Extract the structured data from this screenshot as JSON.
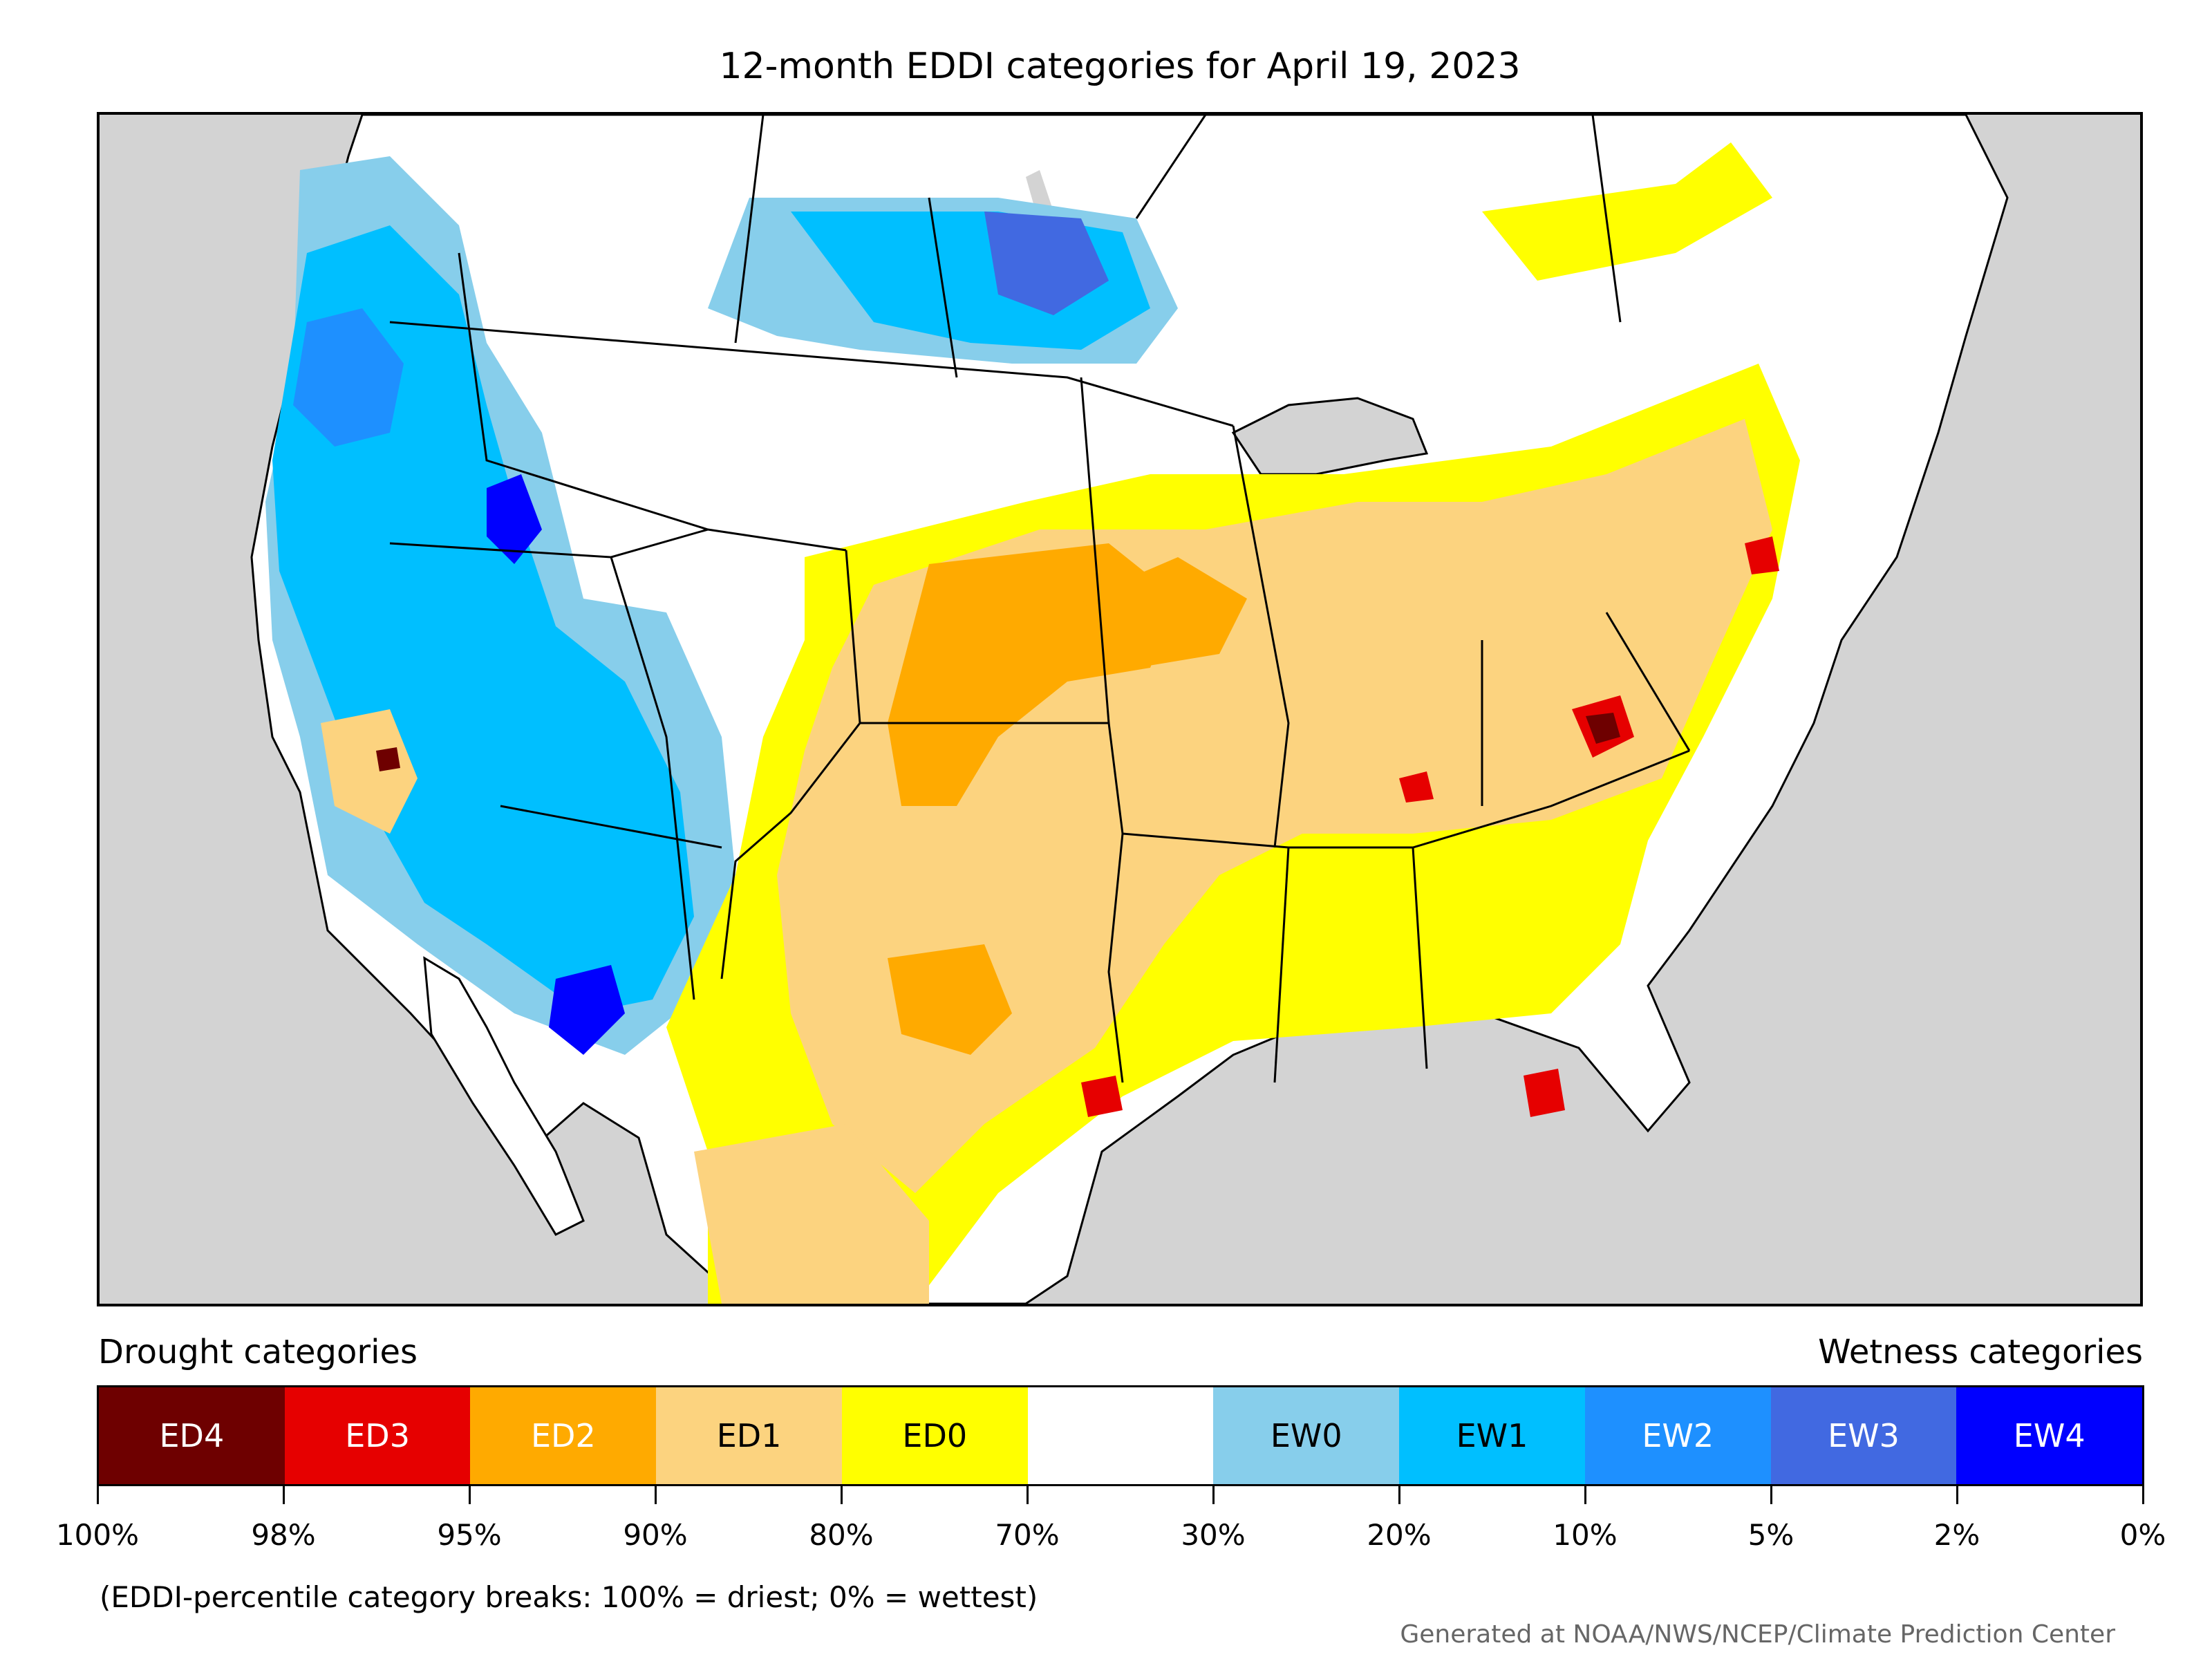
{
  "title": "12-month EDDI categories for April 19, 2023",
  "legend": {
    "drought_heading": "Drought categories",
    "wetness_heading": "Wetness categories",
    "categories": [
      {
        "label": "ED4",
        "color": "#6e0000",
        "text_color": "#ffffff"
      },
      {
        "label": "ED3",
        "color": "#e60000",
        "text_color": "#ffffff"
      },
      {
        "label": "ED2",
        "color": "#ffaa00",
        "text_color": "#ffffff"
      },
      {
        "label": "ED1",
        "color": "#fcd37f",
        "text_color": "#000000"
      },
      {
        "label": "ED0",
        "color": "#ffff00",
        "text_color": "#000000"
      },
      {
        "label": "",
        "color": "#ffffff",
        "text_color": "#000000"
      },
      {
        "label": "EW0",
        "color": "#87ceeb",
        "text_color": "#000000"
      },
      {
        "label": "EW1",
        "color": "#00bfff",
        "text_color": "#000000"
      },
      {
        "label": "EW2",
        "color": "#1e90ff",
        "text_color": "#ffffff"
      },
      {
        "label": "EW3",
        "color": "#4169e1",
        "text_color": "#ffffff"
      },
      {
        "label": "EW4",
        "color": "#0000ff",
        "text_color": "#ffffff"
      }
    ],
    "tick_labels": [
      "100%",
      "98%",
      "95%",
      "90%",
      "80%",
      "70%",
      "30%",
      "20%",
      "10%",
      "5%",
      "2%",
      "0%"
    ],
    "footnote": "(EDDI-percentile category breaks: 100% = driest; 0% = wettest)"
  },
  "credit": "Generated at NOAA/NWS/NCEP/Climate Prediction Center",
  "map": {
    "ocean_color": "#d3d3d3",
    "land_color": "#ffffff"
  }
}
